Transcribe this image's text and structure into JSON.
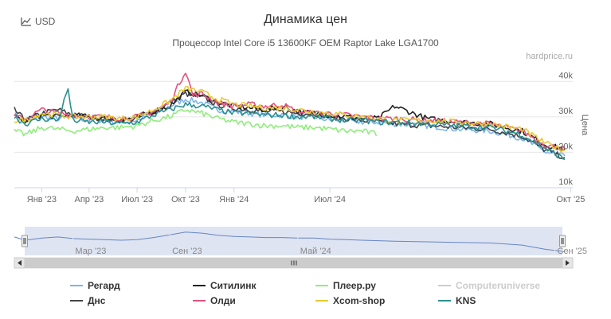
{
  "toolbar": {
    "currency_label": "USD",
    "icon": "line-chart-icon"
  },
  "credit": "hardprice.ru",
  "colors": {
    "grid": "#e6e6e6",
    "navigator_fill": "#ccd6eb",
    "navigator_line": "#6685c2"
  },
  "chart_data": {
    "type": "line",
    "title": "Динамика цен",
    "subtitle": "Процессор Intel Core i5 13600KF OEM Raptor Lake LGA1700",
    "ylabel": "Цена",
    "ylim": [
      10000,
      45000
    ],
    "yticks": [
      10000,
      20000,
      30000,
      40000
    ],
    "ytick_labels": [
      "10k",
      "20k",
      "30k",
      "40k"
    ],
    "xlim": [
      "2022-11-10",
      "2025-10-05"
    ],
    "xticks": [
      "2023-01-01",
      "2023-04-01",
      "2023-07-01",
      "2023-10-01",
      "2024-01-01",
      "2024-07-01",
      "2025-10-01"
    ],
    "xtick_labels": [
      "Янв '23",
      "Апр '23",
      "Июл '23",
      "Окт '23",
      "Янв '24",
      "Июл '24",
      "Окт '25"
    ],
    "navigator": {
      "ticks": [
        "2023-03-01",
        "2023-09-01",
        "2024-05-01",
        "2025-09-01"
      ],
      "tick_labels": [
        "Мар '23",
        "Сен '23",
        "Май '24",
        "Сен '25"
      ]
    },
    "series": [
      {
        "name": "Регард",
        "color": "#7cb5ec",
        "visible": true,
        "x": [
          "2022-11-10",
          "2022-12-01",
          "2023-01-01",
          "2023-02-01",
          "2023-03-01",
          "2023-04-01",
          "2023-05-01",
          "2023-06-01",
          "2023-07-01",
          "2023-08-01",
          "2023-09-01",
          "2023-10-01",
          "2023-11-01",
          "2023-12-01",
          "2024-01-01",
          "2024-02-01",
          "2024-03-01",
          "2024-04-01",
          "2024-05-01",
          "2024-06-01",
          "2024-07-01",
          "2024-08-01",
          "2024-09-01",
          "2024-10-01",
          "2024-11-01",
          "2025-01-01",
          "2025-03-01",
          "2025-05-01",
          "2025-07-01",
          "2025-08-15",
          "2025-09-20"
        ],
        "y": [
          31000,
          28500,
          30000,
          29500,
          30000,
          29000,
          29000,
          28500,
          29000,
          31000,
          33000,
          35000,
          34000,
          32000,
          31500,
          31000,
          30500,
          30500,
          30000,
          30000,
          29000,
          29000,
          28500,
          28500,
          28000,
          27500,
          26500,
          26000,
          24000,
          20000,
          19000
        ]
      },
      {
        "name": "Днс",
        "color": "#434348",
        "visible": true,
        "x": [
          "2022-11-10",
          "2022-12-01",
          "2023-01-01",
          "2023-02-01",
          "2023-03-01",
          "2023-04-01",
          "2023-05-01",
          "2023-06-01",
          "2023-07-01",
          "2023-08-01",
          "2023-09-01",
          "2023-10-01",
          "2023-11-01",
          "2023-12-01",
          "2024-01-01",
          "2024-02-01",
          "2024-03-01",
          "2024-04-01",
          "2024-05-01",
          "2024-06-01",
          "2024-07-01",
          "2024-08-01",
          "2024-09-01",
          "2024-10-01",
          "2024-11-01",
          "2025-01-01",
          "2025-03-01",
          "2025-05-01",
          "2025-07-01",
          "2025-08-15",
          "2025-09-20"
        ],
        "y": [
          32000,
          29000,
          31000,
          32000,
          30500,
          30000,
          29500,
          29000,
          29500,
          31500,
          34000,
          36500,
          35500,
          33500,
          32500,
          32000,
          31500,
          31500,
          31000,
          31000,
          30000,
          29500,
          29000,
          28500,
          28000,
          27500,
          27000,
          26500,
          24500,
          20500,
          18500
        ]
      },
      {
        "name": "Ситилинк",
        "color": "#222222",
        "visible": true,
        "x": [
          "2022-11-10",
          "2022-12-01",
          "2023-01-01",
          "2023-02-01",
          "2023-03-01",
          "2023-04-01",
          "2023-05-01",
          "2023-06-01",
          "2023-07-01",
          "2023-08-01",
          "2023-09-01",
          "2023-10-01",
          "2023-11-01",
          "2023-12-01",
          "2024-01-01",
          "2024-02-01",
          "2024-03-01",
          "2024-04-01",
          "2024-05-01",
          "2024-06-01",
          "2024-07-01",
          "2024-08-01",
          "2024-09-01",
          "2024-10-01",
          "2024-11-01",
          "2025-01-01",
          "2025-03-01",
          "2025-05-01",
          "2025-07-01",
          "2025-08-15",
          "2025-09-20"
        ],
        "y": [
          30000,
          29000,
          30500,
          30000,
          30500,
          30000,
          29500,
          29000,
          30000,
          31500,
          33000,
          37000,
          36000,
          34000,
          33000,
          32500,
          32000,
          33000,
          31500,
          31000,
          30500,
          30000,
          29500,
          29500,
          33000,
          29500,
          28500,
          28000,
          26000,
          22000,
          21000
        ]
      },
      {
        "name": "Олди",
        "color": "#e4527d",
        "visible": true,
        "x": [
          "2022-11-10",
          "2022-12-01",
          "2023-01-01",
          "2023-02-01",
          "2023-03-01",
          "2023-04-01",
          "2023-05-01",
          "2023-06-01",
          "2023-07-01",
          "2023-08-01",
          "2023-09-01",
          "2023-10-01",
          "2023-10-15",
          "2023-11-01",
          "2023-12-01",
          "2024-01-01",
          "2024-02-01",
          "2024-03-01",
          "2024-04-01",
          "2024-05-01",
          "2024-06-01",
          "2024-07-01",
          "2024-08-01",
          "2024-09-01",
          "2024-10-01",
          "2024-11-01",
          "2025-01-01",
          "2025-03-01",
          "2025-05-01",
          "2025-07-01",
          "2025-08-15",
          "2025-09-20"
        ],
        "y": [
          30000,
          29500,
          32000,
          31000,
          30500,
          30000,
          30000,
          29500,
          30000,
          31500,
          34000,
          43000,
          36000,
          36500,
          34000,
          33000,
          33500,
          33000,
          33500,
          31500,
          31000,
          31000,
          30500,
          30000,
          29500,
          29500,
          29000,
          28500,
          28000,
          26000,
          22000,
          21000
        ]
      },
      {
        "name": "Плеер.ру",
        "color": "#90ed7d",
        "visible": true,
        "x": [
          "2022-11-10",
          "2022-12-01",
          "2023-01-01",
          "2023-02-01",
          "2023-03-01",
          "2023-04-01",
          "2023-05-01",
          "2023-06-01",
          "2023-07-01",
          "2023-08-01",
          "2023-09-01",
          "2023-10-01",
          "2023-11-01",
          "2023-12-01",
          "2024-01-01",
          "2024-02-01",
          "2024-03-01",
          "2024-04-01",
          "2024-05-01",
          "2024-06-01",
          "2024-07-01",
          "2024-08-01",
          "2024-09-01",
          "2024-10-01",
          "2024-11-01",
          "2025-01-01",
          "2025-03-01",
          "2025-05-01",
          "2025-07-01",
          "2025-08-15",
          "2025-09-20"
        ],
        "y": [
          26000,
          25000,
          27000,
          26500,
          26000,
          26500,
          27000,
          27000,
          27500,
          29000,
          30000,
          32000,
          31000,
          29500,
          28500,
          28000,
          27500,
          27500,
          27000,
          27000,
          26500,
          26000,
          26000,
          25000,
          null,
          null,
          null,
          null,
          null,
          null,
          null
        ]
      },
      {
        "name": "Xcom-shop",
        "color": "#e8c933",
        "visible": true,
        "x": [
          "2022-11-10",
          "2022-12-01",
          "2023-01-01",
          "2023-02-01",
          "2023-03-01",
          "2023-04-01",
          "2023-05-01",
          "2023-06-01",
          "2023-07-01",
          "2023-08-01",
          "2023-09-01",
          "2023-10-01",
          "2023-11-01",
          "2023-12-01",
          "2024-01-01",
          "2024-02-01",
          "2024-03-01",
          "2024-04-01",
          "2024-05-01",
          "2024-06-01",
          "2024-07-01",
          "2024-08-01",
          "2024-09-01",
          "2024-10-01",
          "2024-11-01",
          "2025-01-01",
          "2025-03-01",
          "2025-05-01",
          "2025-07-01",
          "2025-08-15",
          "2025-09-20"
        ],
        "y": [
          29000,
          29000,
          31000,
          30500,
          30000,
          30000,
          30000,
          29500,
          30000,
          32000,
          34500,
          38000,
          37000,
          35000,
          33500,
          33000,
          32500,
          32500,
          32000,
          31500,
          31000,
          30500,
          30000,
          29500,
          29000,
          29000,
          28500,
          28000,
          26500,
          22500,
          20500
        ]
      },
      {
        "name": "Computeruniverse",
        "color": "#cccccc",
        "visible": false,
        "x": [],
        "y": []
      },
      {
        "name": "KNS",
        "color": "#2b908f",
        "visible": true,
        "x": [
          "2022-11-10",
          "2022-12-01",
          "2023-01-01",
          "2023-02-01",
          "2023-02-20",
          "2023-03-01",
          "2023-04-01",
          "2023-05-01",
          "2023-06-01",
          "2023-07-01",
          "2023-08-01",
          "2023-09-01",
          "2023-10-01",
          "2023-11-01",
          "2023-12-01",
          "2024-01-01",
          "2024-02-01",
          "2024-03-01",
          "2024-04-01",
          "2024-05-01",
          "2024-06-01",
          "2024-07-01",
          "2024-08-01",
          "2024-09-01",
          "2024-10-01",
          "2024-11-01",
          "2025-01-01",
          "2025-03-01",
          "2025-05-01",
          "2025-07-01",
          "2025-08-15",
          "2025-09-20"
        ],
        "y": [
          30000,
          28000,
          29500,
          29000,
          38000,
          29000,
          28500,
          28500,
          28000,
          28500,
          30500,
          32000,
          33500,
          33000,
          32000,
          31000,
          31000,
          30500,
          30500,
          30000,
          30000,
          29500,
          29000,
          29000,
          28500,
          28500,
          28000,
          27500,
          27000,
          25000,
          21000,
          18000
        ]
      }
    ]
  }
}
